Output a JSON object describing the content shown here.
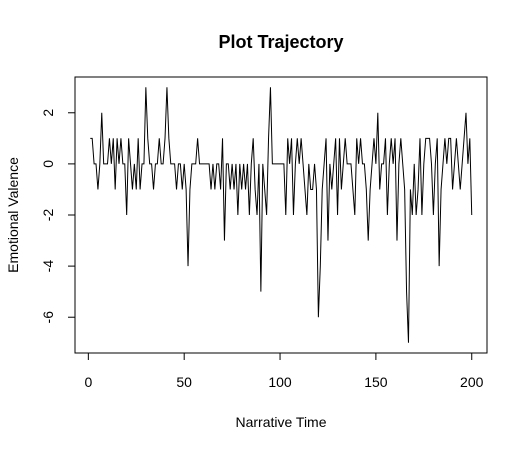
{
  "chart_data": {
    "type": "line",
    "title": "Plot Trajectory",
    "x_label": "Narrative Time",
    "y_label": "Emotional Valence",
    "x": [
      1,
      2,
      3,
      4,
      5,
      6,
      7,
      8,
      9,
      10,
      11,
      12,
      13,
      14,
      15,
      16,
      17,
      18,
      19,
      20,
      21,
      22,
      23,
      24,
      25,
      26,
      27,
      28,
      29,
      30,
      31,
      32,
      33,
      34,
      35,
      36,
      37,
      38,
      39,
      40,
      41,
      42,
      43,
      44,
      45,
      46,
      47,
      48,
      49,
      50,
      51,
      52,
      53,
      54,
      55,
      56,
      57,
      58,
      59,
      60,
      61,
      62,
      63,
      64,
      65,
      66,
      67,
      68,
      69,
      70,
      71,
      72,
      73,
      74,
      75,
      76,
      77,
      78,
      79,
      80,
      81,
      82,
      83,
      84,
      85,
      86,
      87,
      88,
      89,
      90,
      91,
      92,
      93,
      94,
      95,
      96,
      97,
      98,
      99,
      100,
      101,
      102,
      103,
      104,
      105,
      106,
      107,
      108,
      109,
      110,
      111,
      112,
      113,
      114,
      115,
      116,
      117,
      118,
      119,
      120,
      121,
      122,
      123,
      124,
      125,
      126,
      127,
      128,
      129,
      130,
      131,
      132,
      133,
      134,
      135,
      136,
      137,
      138,
      139,
      140,
      141,
      142,
      143,
      144,
      145,
      146,
      147,
      148,
      149,
      150,
      151,
      152,
      153,
      154,
      155,
      156,
      157,
      158,
      159,
      160,
      161,
      162,
      163,
      164,
      165,
      166,
      167,
      168,
      169,
      170,
      171,
      172,
      173,
      174,
      175,
      176,
      177,
      178,
      179,
      180,
      181,
      182,
      183,
      184,
      185,
      186,
      187,
      188,
      189,
      190,
      191,
      192,
      193,
      194,
      195,
      196,
      197,
      198,
      199,
      200
    ],
    "values": [
      1,
      1,
      0,
      0,
      -1,
      0,
      2,
      0,
      0,
      0,
      1,
      0,
      1,
      -1,
      1,
      0,
      1,
      0,
      0,
      -2,
      1,
      0,
      -1,
      0,
      -1,
      1,
      -1,
      0,
      0,
      3,
      1,
      0,
      0,
      -1,
      0,
      0,
      1,
      0,
      0,
      1,
      3,
      1,
      0,
      0,
      0,
      -1,
      0,
      0,
      -1,
      0,
      -1,
      -4,
      -1,
      0,
      0,
      0,
      1,
      0,
      0,
      0,
      0,
      0,
      0,
      -1,
      0,
      -1,
      0,
      0,
      -1,
      1,
      -3,
      0,
      0,
      -1,
      0,
      -1,
      0,
      -2,
      0,
      -1,
      0,
      -1,
      0,
      -2,
      0,
      1,
      -1,
      -2,
      0,
      -5,
      0,
      -1,
      -2,
      1,
      3,
      0,
      0,
      0,
      0,
      0,
      0,
      0,
      -2,
      1,
      0,
      1,
      -2,
      0,
      1,
      0,
      1,
      0,
      -1,
      -2,
      0,
      -1,
      -1,
      0,
      -1,
      -6,
      -4,
      -1,
      0,
      1,
      -3,
      0,
      -1,
      0,
      1,
      -2,
      1,
      -1,
      0,
      1,
      0,
      0,
      0,
      -1,
      -2,
      1,
      0,
      1,
      0,
      0,
      -1,
      -3,
      -1,
      0,
      1,
      0,
      2,
      -1,
      0,
      0,
      1,
      -2,
      0,
      1,
      0,
      1,
      -3,
      0,
      1,
      0,
      -1,
      -5,
      -7,
      -1,
      -2,
      0,
      -2,
      -1,
      1,
      -2,
      0,
      1,
      1,
      1,
      0,
      -2,
      0,
      1,
      -4,
      -1,
      0,
      1,
      0,
      1,
      1,
      -1,
      0,
      1,
      0,
      -1,
      0,
      1,
      2,
      0,
      1,
      -2
    ],
    "color": "#000000",
    "xlim": [
      -6.96,
      207.96
    ],
    "xticks": [
      0,
      50,
      100,
      150,
      200
    ],
    "ylim": [
      -7.4,
      3.4
    ],
    "yticks": [
      -6,
      -4,
      -2,
      0,
      2
    ]
  }
}
